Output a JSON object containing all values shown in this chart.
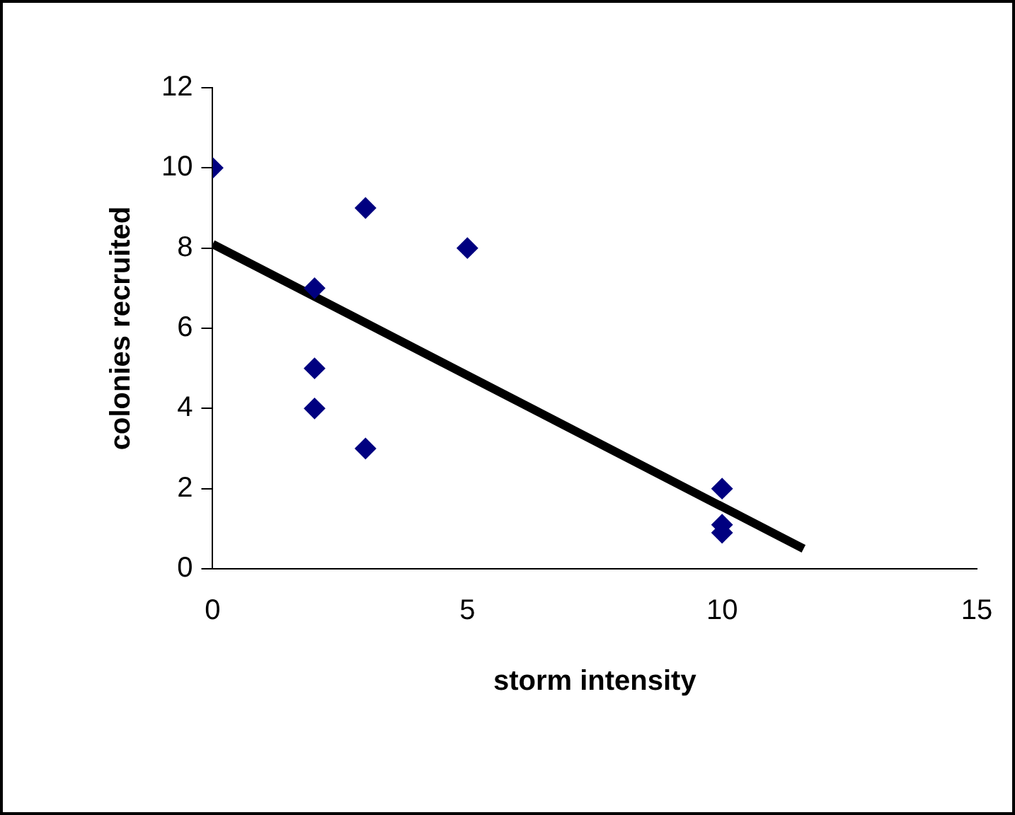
{
  "chart_data": {
    "type": "scatter",
    "xlabel": "storm intensity",
    "ylabel": "colonies recruited",
    "xlim": [
      0,
      15
    ],
    "xticks": [
      0,
      5,
      10,
      15
    ],
    "ylim": [
      0,
      12
    ],
    "yticks": [
      0,
      2,
      4,
      6,
      8,
      10,
      12
    ],
    "grid": false,
    "legend": false,
    "marker": "diamond",
    "series": [
      {
        "color": "#000080",
        "x": [
          0,
          2,
          2,
          2,
          3,
          3,
          5,
          10,
          10,
          10
        ],
        "values": [
          10,
          7,
          5,
          4,
          9,
          3,
          8,
          2,
          1.1,
          0.9
        ]
      },
      {
        "type": "line",
        "color": "#000000",
        "marker": "none",
        "line_style": "solid",
        "x": [
          0,
          11.6
        ],
        "values": [
          8.1,
          0.5
        ]
      }
    ]
  }
}
